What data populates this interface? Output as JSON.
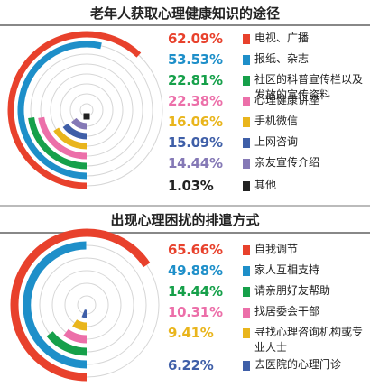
{
  "chart_data": [
    {
      "type": "radial-bar",
      "title": "老年人获取心理健康知识的途径",
      "unit": "%",
      "max_value": 100,
      "series": [
        {
          "label": "电视、广播",
          "value": 62.09,
          "display": "62.09%",
          "color": "#e8412c"
        },
        {
          "label": "报纸、杂志",
          "value": 53.53,
          "display": "53.53%",
          "color": "#1e8fc9"
        },
        {
          "label": "社区的科普宣传栏以及发放的宣传资料",
          "value": 22.81,
          "display": "22.81%",
          "color": "#16a04a"
        },
        {
          "label": "心理健康讲座",
          "value": 22.38,
          "display": "22.38%",
          "color": "#ec6fa9"
        },
        {
          "label": "手机微信",
          "value": 16.06,
          "display": "16.06%",
          "color": "#e9b51c"
        },
        {
          "label": "上网咨询",
          "value": 15.09,
          "display": "15.09%",
          "color": "#3f5fa8"
        },
        {
          "label": "亲友宣传介绍",
          "value": 14.44,
          "display": "14.44%",
          "color": "#8579b6"
        },
        {
          "label": "其他",
          "value": 1.03,
          "display": "1.03%",
          "color": "#222222"
        }
      ]
    },
    {
      "type": "radial-bar",
      "title": "出现心理困扰的排遣方式",
      "unit": "%",
      "max_value": 100,
      "series": [
        {
          "label": "自我调节",
          "value": 65.66,
          "display": "65.66%",
          "color": "#e8412c"
        },
        {
          "label": "家人互相支持",
          "value": 49.88,
          "display": "49.88%",
          "color": "#1e8fc9"
        },
        {
          "label": "请亲朋好友帮助",
          "value": 14.44,
          "display": "14.44%",
          "color": "#16a04a"
        },
        {
          "label": "找居委会干部",
          "value": 10.31,
          "display": "10.31%",
          "color": "#ec6fa9"
        },
        {
          "label": "寻找心理咨询机构或专业人士",
          "value": 9.41,
          "display": "9.41%",
          "color": "#e9b51c"
        },
        {
          "label": "去医院的心理门诊",
          "value": 6.22,
          "display": "6.22%",
          "color": "#3f5fa8"
        }
      ]
    }
  ]
}
